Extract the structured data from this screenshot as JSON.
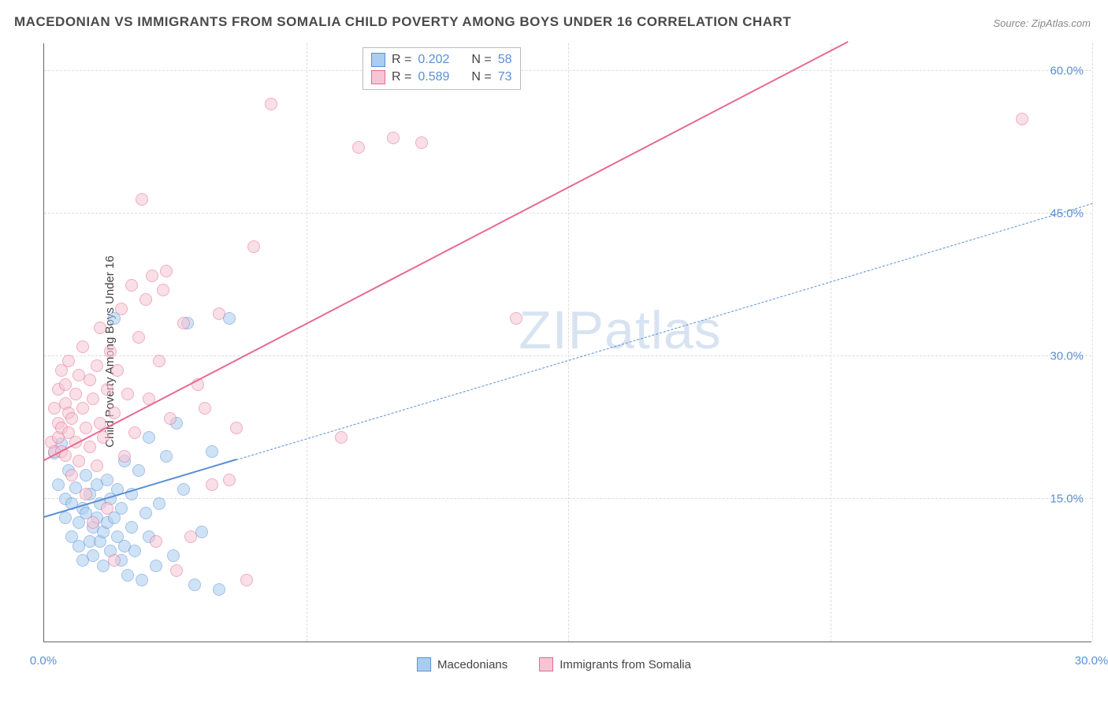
{
  "title": "MACEDONIAN VS IMMIGRANTS FROM SOMALIA CHILD POVERTY AMONG BOYS UNDER 16 CORRELATION CHART",
  "source_prefix": "Source: ",
  "source": "ZipAtlas.com",
  "ylabel": "Child Poverty Among Boys Under 16",
  "watermark_bold": "ZIP",
  "watermark_thin": "atlas",
  "chart": {
    "type": "scatter",
    "xlim": [
      0,
      30
    ],
    "ylim": [
      0,
      63
    ],
    "xtick_labels": [
      "0.0%",
      "30.0%"
    ],
    "xtick_positions": [
      0,
      30
    ],
    "ytick_labels": [
      "15.0%",
      "30.0%",
      "45.0%",
      "60.0%"
    ],
    "ytick_positions": [
      15,
      30,
      45,
      60
    ],
    "x_minor_gridlines": [
      0,
      7.5,
      15,
      22.5,
      30
    ],
    "background_color": "#ffffff",
    "grid_color": "#dddddd",
    "axis_color": "#666666",
    "tick_label_color": "#5a8fd6",
    "marker_radius": 8,
    "marker_opacity": 0.55
  },
  "series": [
    {
      "key": "macedonians",
      "label": "Macedonians",
      "fill": "#a9cdf0",
      "stroke": "#5a8fd6",
      "R": "0.202",
      "N": "58",
      "trend": {
        "x1": 0,
        "y1": 13.0,
        "x2": 30,
        "y2": 46.0,
        "solid_until_x": 5.5
      },
      "points": [
        [
          0.3,
          19.8
        ],
        [
          0.4,
          16.5
        ],
        [
          0.5,
          20.8
        ],
        [
          0.6,
          15.0
        ],
        [
          0.6,
          13.0
        ],
        [
          0.7,
          18.0
        ],
        [
          0.8,
          14.5
        ],
        [
          0.8,
          11.0
        ],
        [
          0.9,
          16.2
        ],
        [
          1.0,
          12.5
        ],
        [
          1.0,
          10.0
        ],
        [
          1.1,
          14.0
        ],
        [
          1.1,
          8.5
        ],
        [
          1.2,
          17.5
        ],
        [
          1.2,
          13.5
        ],
        [
          1.3,
          10.5
        ],
        [
          1.3,
          15.5
        ],
        [
          1.4,
          12.0
        ],
        [
          1.4,
          9.0
        ],
        [
          1.5,
          16.5
        ],
        [
          1.5,
          13.0
        ],
        [
          1.6,
          10.5
        ],
        [
          1.6,
          14.5
        ],
        [
          1.7,
          11.5
        ],
        [
          1.7,
          8.0
        ],
        [
          1.8,
          17.0
        ],
        [
          1.8,
          12.5
        ],
        [
          1.9,
          9.5
        ],
        [
          1.9,
          15.0
        ],
        [
          2.0,
          13.0
        ],
        [
          2.0,
          34.0
        ],
        [
          2.1,
          11.0
        ],
        [
          2.1,
          16.0
        ],
        [
          2.2,
          8.5
        ],
        [
          2.2,
          14.0
        ],
        [
          2.3,
          19.0
        ],
        [
          2.3,
          10.0
        ],
        [
          2.4,
          7.0
        ],
        [
          2.5,
          12.0
        ],
        [
          2.5,
          15.5
        ],
        [
          2.6,
          9.5
        ],
        [
          2.7,
          18.0
        ],
        [
          2.8,
          6.5
        ],
        [
          2.9,
          13.5
        ],
        [
          3.0,
          11.0
        ],
        [
          3.0,
          21.5
        ],
        [
          3.2,
          8.0
        ],
        [
          3.3,
          14.5
        ],
        [
          3.5,
          19.5
        ],
        [
          3.7,
          9.0
        ],
        [
          3.8,
          23.0
        ],
        [
          4.0,
          16.0
        ],
        [
          4.1,
          33.5
        ],
        [
          4.3,
          6.0
        ],
        [
          4.5,
          11.5
        ],
        [
          4.8,
          20.0
        ],
        [
          5.0,
          5.5
        ],
        [
          5.3,
          34.0
        ]
      ]
    },
    {
      "key": "somalia",
      "label": "Immigrants from Somalia",
      "fill": "#f5c5d3",
      "stroke": "#e86993",
      "R": "0.589",
      "N": "73",
      "trend": {
        "x1": 0,
        "y1": 19.0,
        "x2": 23,
        "y2": 63.0,
        "solid_until_x": 23
      },
      "points": [
        [
          0.2,
          21.0
        ],
        [
          0.3,
          20.0
        ],
        [
          0.3,
          24.5
        ],
        [
          0.4,
          21.5
        ],
        [
          0.4,
          23.0
        ],
        [
          0.4,
          26.5
        ],
        [
          0.5,
          28.5
        ],
        [
          0.5,
          22.5
        ],
        [
          0.5,
          20.0
        ],
        [
          0.6,
          25.0
        ],
        [
          0.6,
          27.0
        ],
        [
          0.7,
          22.0
        ],
        [
          0.7,
          24.0
        ],
        [
          0.7,
          29.5
        ],
        [
          0.8,
          17.5
        ],
        [
          0.8,
          23.5
        ],
        [
          0.9,
          26.0
        ],
        [
          0.9,
          21.0
        ],
        [
          1.0,
          28.0
        ],
        [
          1.0,
          19.0
        ],
        [
          1.1,
          24.5
        ],
        [
          1.1,
          31.0
        ],
        [
          1.2,
          22.5
        ],
        [
          1.2,
          15.5
        ],
        [
          1.3,
          27.5
        ],
        [
          1.3,
          20.5
        ],
        [
          1.4,
          25.5
        ],
        [
          1.4,
          12.5
        ],
        [
          1.5,
          29.0
        ],
        [
          1.5,
          18.5
        ],
        [
          1.6,
          23.0
        ],
        [
          1.6,
          33.0
        ],
        [
          1.7,
          21.5
        ],
        [
          1.8,
          26.5
        ],
        [
          1.8,
          14.0
        ],
        [
          1.9,
          30.5
        ],
        [
          2.0,
          24.0
        ],
        [
          2.0,
          8.5
        ],
        [
          2.1,
          28.5
        ],
        [
          2.2,
          35.0
        ],
        [
          2.3,
          19.5
        ],
        [
          2.4,
          26.0
        ],
        [
          2.5,
          37.5
        ],
        [
          2.6,
          22.0
        ],
        [
          2.7,
          32.0
        ],
        [
          2.8,
          46.5
        ],
        [
          2.9,
          36.0
        ],
        [
          3.0,
          25.5
        ],
        [
          3.1,
          38.5
        ],
        [
          3.2,
          10.5
        ],
        [
          3.3,
          29.5
        ],
        [
          3.4,
          37.0
        ],
        [
          3.5,
          39.0
        ],
        [
          3.6,
          23.5
        ],
        [
          3.8,
          7.5
        ],
        [
          4.0,
          33.5
        ],
        [
          4.2,
          11.0
        ],
        [
          4.4,
          27.0
        ],
        [
          4.6,
          24.5
        ],
        [
          4.8,
          16.5
        ],
        [
          5.0,
          34.5
        ],
        [
          5.3,
          17.0
        ],
        [
          5.5,
          22.5
        ],
        [
          5.8,
          6.5
        ],
        [
          6.0,
          41.5
        ],
        [
          6.5,
          56.5
        ],
        [
          8.5,
          21.5
        ],
        [
          9.0,
          52.0
        ],
        [
          10.0,
          53.0
        ],
        [
          10.8,
          52.5
        ],
        [
          13.5,
          34.0
        ],
        [
          28.0,
          55.0
        ],
        [
          0.6,
          19.6
        ]
      ]
    }
  ],
  "legend_top": {
    "R_label": "R =",
    "N_label": "N ="
  }
}
